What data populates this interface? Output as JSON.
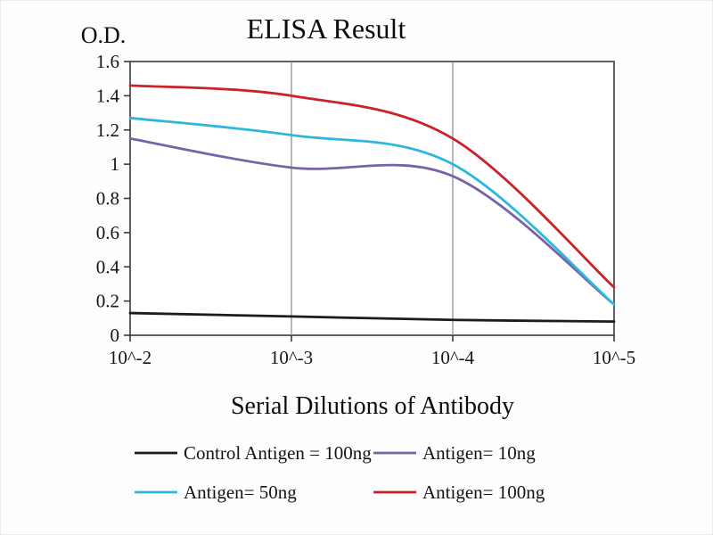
{
  "chart_data": {
    "type": "line",
    "title": "ELISA Result",
    "ylabel": "O.D.",
    "xlabel": "Serial Dilutions of Antibody",
    "x_ticklabels": [
      "10^-2",
      "10^-3",
      "10^-4",
      "10^-5"
    ],
    "y_ticks": [
      0,
      0.2,
      0.4,
      0.6,
      0.8,
      1,
      1.2,
      1.4,
      1.6
    ],
    "y_ticklabels": [
      "0",
      "0.2",
      "0.4",
      "0.6",
      "0.8",
      "1",
      "1.2",
      "1.4",
      "1.6"
    ],
    "ylim": [
      0,
      1.6
    ],
    "grid": "vertical-only",
    "legend_position": "bottom",
    "series": [
      {
        "name": "Control Antigen = 100ng",
        "color": "#1c1c1c",
        "values": [
          0.13,
          0.11,
          0.09,
          0.08
        ]
      },
      {
        "name": "Antigen= 10ng",
        "color": "#7862a8",
        "values": [
          1.15,
          0.98,
          0.93,
          0.18
        ]
      },
      {
        "name": "Antigen= 50ng",
        "color": "#2eb6dc",
        "values": [
          1.27,
          1.17,
          1.0,
          0.18
        ]
      },
      {
        "name": "Antigen= 100ng",
        "color": "#cb2229",
        "values": [
          1.46,
          1.4,
          1.15,
          0.28
        ]
      }
    ]
  }
}
